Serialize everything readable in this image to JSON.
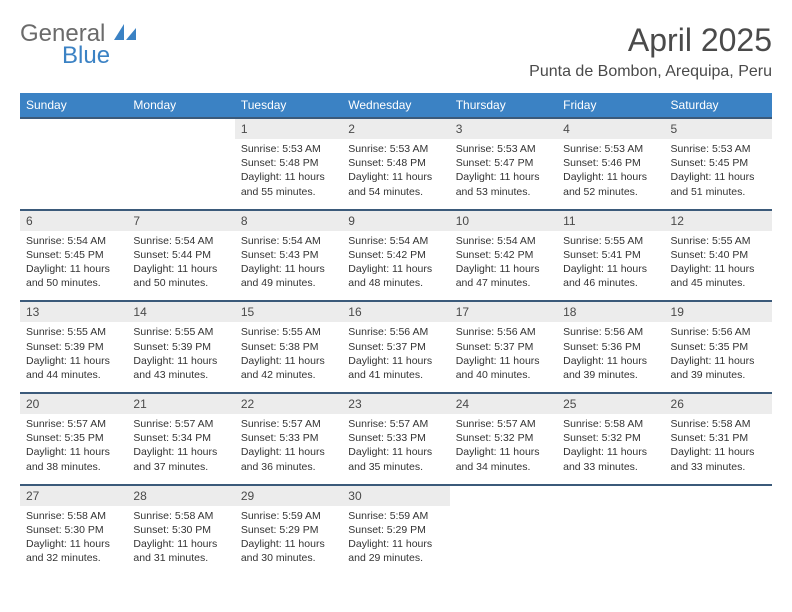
{
  "brand": {
    "line1": "General",
    "line2": "Blue",
    "logo_color": "#3b82c4",
    "text_color": "#6b6b6b"
  },
  "title": "April 2025",
  "location": "Punta de Bombon, Arequipa, Peru",
  "colors": {
    "header_bg": "#3b82c4",
    "header_text": "#ffffff",
    "daynum_bg": "#ececec",
    "border": "#3b5a7a"
  },
  "day_headers": [
    "Sunday",
    "Monday",
    "Tuesday",
    "Wednesday",
    "Thursday",
    "Friday",
    "Saturday"
  ],
  "weeks": [
    [
      null,
      null,
      {
        "n": "1",
        "sr": "Sunrise: 5:53 AM",
        "ss": "Sunset: 5:48 PM",
        "dl": "Daylight: 11 hours and 55 minutes."
      },
      {
        "n": "2",
        "sr": "Sunrise: 5:53 AM",
        "ss": "Sunset: 5:48 PM",
        "dl": "Daylight: 11 hours and 54 minutes."
      },
      {
        "n": "3",
        "sr": "Sunrise: 5:53 AM",
        "ss": "Sunset: 5:47 PM",
        "dl": "Daylight: 11 hours and 53 minutes."
      },
      {
        "n": "4",
        "sr": "Sunrise: 5:53 AM",
        "ss": "Sunset: 5:46 PM",
        "dl": "Daylight: 11 hours and 52 minutes."
      },
      {
        "n": "5",
        "sr": "Sunrise: 5:53 AM",
        "ss": "Sunset: 5:45 PM",
        "dl": "Daylight: 11 hours and 51 minutes."
      }
    ],
    [
      {
        "n": "6",
        "sr": "Sunrise: 5:54 AM",
        "ss": "Sunset: 5:45 PM",
        "dl": "Daylight: 11 hours and 50 minutes."
      },
      {
        "n": "7",
        "sr": "Sunrise: 5:54 AM",
        "ss": "Sunset: 5:44 PM",
        "dl": "Daylight: 11 hours and 50 minutes."
      },
      {
        "n": "8",
        "sr": "Sunrise: 5:54 AM",
        "ss": "Sunset: 5:43 PM",
        "dl": "Daylight: 11 hours and 49 minutes."
      },
      {
        "n": "9",
        "sr": "Sunrise: 5:54 AM",
        "ss": "Sunset: 5:42 PM",
        "dl": "Daylight: 11 hours and 48 minutes."
      },
      {
        "n": "10",
        "sr": "Sunrise: 5:54 AM",
        "ss": "Sunset: 5:42 PM",
        "dl": "Daylight: 11 hours and 47 minutes."
      },
      {
        "n": "11",
        "sr": "Sunrise: 5:55 AM",
        "ss": "Sunset: 5:41 PM",
        "dl": "Daylight: 11 hours and 46 minutes."
      },
      {
        "n": "12",
        "sr": "Sunrise: 5:55 AM",
        "ss": "Sunset: 5:40 PM",
        "dl": "Daylight: 11 hours and 45 minutes."
      }
    ],
    [
      {
        "n": "13",
        "sr": "Sunrise: 5:55 AM",
        "ss": "Sunset: 5:39 PM",
        "dl": "Daylight: 11 hours and 44 minutes."
      },
      {
        "n": "14",
        "sr": "Sunrise: 5:55 AM",
        "ss": "Sunset: 5:39 PM",
        "dl": "Daylight: 11 hours and 43 minutes."
      },
      {
        "n": "15",
        "sr": "Sunrise: 5:55 AM",
        "ss": "Sunset: 5:38 PM",
        "dl": "Daylight: 11 hours and 42 minutes."
      },
      {
        "n": "16",
        "sr": "Sunrise: 5:56 AM",
        "ss": "Sunset: 5:37 PM",
        "dl": "Daylight: 11 hours and 41 minutes."
      },
      {
        "n": "17",
        "sr": "Sunrise: 5:56 AM",
        "ss": "Sunset: 5:37 PM",
        "dl": "Daylight: 11 hours and 40 minutes."
      },
      {
        "n": "18",
        "sr": "Sunrise: 5:56 AM",
        "ss": "Sunset: 5:36 PM",
        "dl": "Daylight: 11 hours and 39 minutes."
      },
      {
        "n": "19",
        "sr": "Sunrise: 5:56 AM",
        "ss": "Sunset: 5:35 PM",
        "dl": "Daylight: 11 hours and 39 minutes."
      }
    ],
    [
      {
        "n": "20",
        "sr": "Sunrise: 5:57 AM",
        "ss": "Sunset: 5:35 PM",
        "dl": "Daylight: 11 hours and 38 minutes."
      },
      {
        "n": "21",
        "sr": "Sunrise: 5:57 AM",
        "ss": "Sunset: 5:34 PM",
        "dl": "Daylight: 11 hours and 37 minutes."
      },
      {
        "n": "22",
        "sr": "Sunrise: 5:57 AM",
        "ss": "Sunset: 5:33 PM",
        "dl": "Daylight: 11 hours and 36 minutes."
      },
      {
        "n": "23",
        "sr": "Sunrise: 5:57 AM",
        "ss": "Sunset: 5:33 PM",
        "dl": "Daylight: 11 hours and 35 minutes."
      },
      {
        "n": "24",
        "sr": "Sunrise: 5:57 AM",
        "ss": "Sunset: 5:32 PM",
        "dl": "Daylight: 11 hours and 34 minutes."
      },
      {
        "n": "25",
        "sr": "Sunrise: 5:58 AM",
        "ss": "Sunset: 5:32 PM",
        "dl": "Daylight: 11 hours and 33 minutes."
      },
      {
        "n": "26",
        "sr": "Sunrise: 5:58 AM",
        "ss": "Sunset: 5:31 PM",
        "dl": "Daylight: 11 hours and 33 minutes."
      }
    ],
    [
      {
        "n": "27",
        "sr": "Sunrise: 5:58 AM",
        "ss": "Sunset: 5:30 PM",
        "dl": "Daylight: 11 hours and 32 minutes."
      },
      {
        "n": "28",
        "sr": "Sunrise: 5:58 AM",
        "ss": "Sunset: 5:30 PM",
        "dl": "Daylight: 11 hours and 31 minutes."
      },
      {
        "n": "29",
        "sr": "Sunrise: 5:59 AM",
        "ss": "Sunset: 5:29 PM",
        "dl": "Daylight: 11 hours and 30 minutes."
      },
      {
        "n": "30",
        "sr": "Sunrise: 5:59 AM",
        "ss": "Sunset: 5:29 PM",
        "dl": "Daylight: 11 hours and 29 minutes."
      },
      null,
      null,
      null
    ]
  ]
}
